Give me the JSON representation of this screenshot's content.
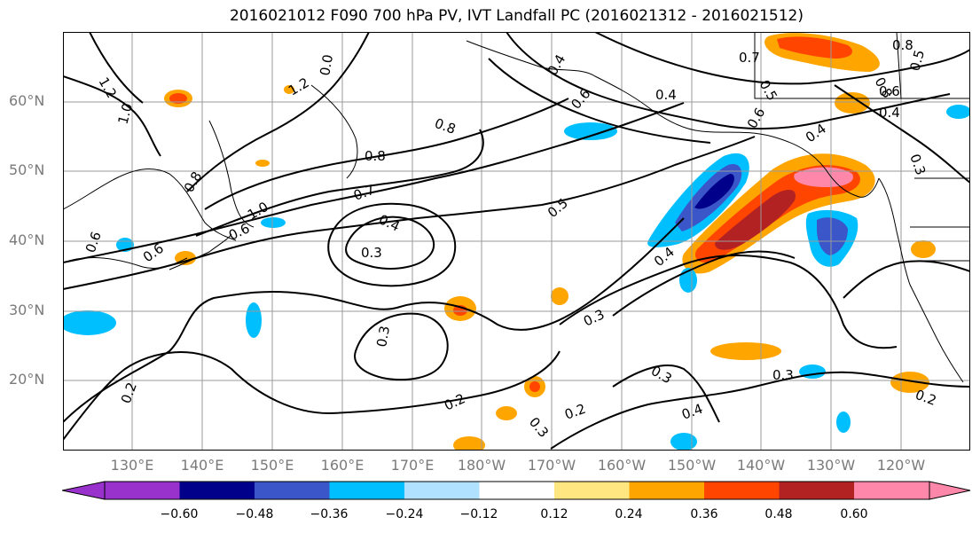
{
  "title": "2016021012 F090 700 hPa PV, IVT Landfall PC (2016021312 - 2016021512)",
  "lat_labels": [
    "60°N",
    "50°N",
    "40°N",
    "30°N",
    "20°N"
  ],
  "lon_labels": [
    "130°E",
    "140°E",
    "150°E",
    "160°E",
    "170°E",
    "180°W",
    "170°W",
    "160°W",
    "150°W",
    "140°W",
    "130°W",
    "120°W"
  ],
  "colorbar": {
    "colors": [
      "#9932cc",
      "#00008b",
      "#3a56c8",
      "#00bfff",
      "#b0e2ff",
      "#ffffff",
      "#ffe680",
      "#ffa500",
      "#ff4500",
      "#b22222",
      "#ff88aa"
    ],
    "tick_labels": [
      "−0.60",
      "−0.48",
      "−0.36",
      "−0.24",
      "−0.12",
      "0.12",
      "0.24",
      "0.36",
      "0.48",
      "0.60"
    ]
  },
  "contour_labels": [
    "1.2",
    "1.0",
    "0.8",
    "0.8",
    "0.6",
    "0.6",
    "0.6",
    "0.7",
    "0.4",
    "0.3",
    "0.5",
    "0.4",
    "0.3",
    "0.3",
    "0.2",
    "0.2",
    "0.2",
    "0.3",
    "0.4",
    "0.3",
    "0.3",
    "0.2",
    "0.4",
    "0.8",
    "0.6",
    "0.5",
    "0.4",
    "0.7",
    "0.8",
    "0.6",
    "0.4",
    "0.3",
    "0.5",
    "1.2",
    "0.0",
    "0.4",
    "0.8",
    "1.0",
    "0.6"
  ],
  "icons": {
    "colorbar_extend_min": "triangle-left",
    "colorbar_extend_max": "triangle-right"
  },
  "gridline_color": "#9a9a9a"
}
